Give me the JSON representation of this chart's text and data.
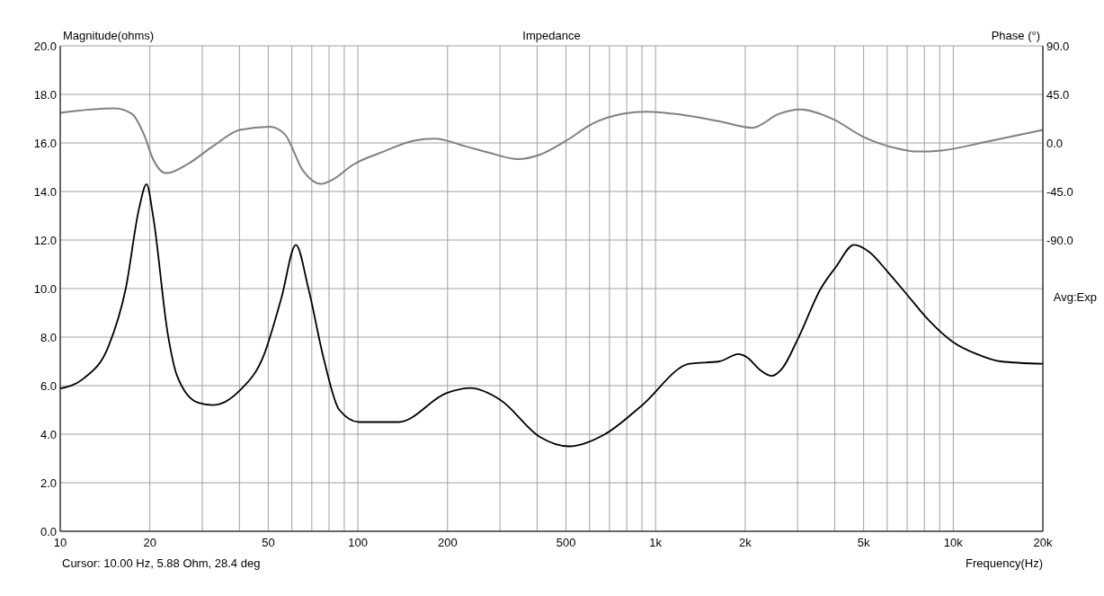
{
  "chart_data": {
    "type": "line",
    "title": "Impedance",
    "xlabel": "Frequency(Hz)",
    "ylabel": "Magnitude(ohms)",
    "y2label": "Phase (°)",
    "annotations": [
      "Cursor: 10.00 Hz, 5.88 Ohm, 28.4 deg",
      "Avg:Exp"
    ],
    "log": "x",
    "grid": true,
    "line_style": "solid",
    "marker": "none",
    "xlim": [
      10,
      20000
    ],
    "xticks": [
      {
        "value": 10,
        "label": "10"
      },
      {
        "value": 20,
        "label": "20"
      },
      {
        "value": 30,
        "label": null
      },
      {
        "value": 40,
        "label": null
      },
      {
        "value": 50,
        "label": "50"
      },
      {
        "value": 60,
        "label": null
      },
      {
        "value": 70,
        "label": null
      },
      {
        "value": 80,
        "label": null
      },
      {
        "value": 90,
        "label": null
      },
      {
        "value": 100,
        "label": "100"
      },
      {
        "value": 200,
        "label": "200"
      },
      {
        "value": 300,
        "label": null
      },
      {
        "value": 400,
        "label": null
      },
      {
        "value": 500,
        "label": "500"
      },
      {
        "value": 600,
        "label": null
      },
      {
        "value": 700,
        "label": null
      },
      {
        "value": 800,
        "label": null
      },
      {
        "value": 900,
        "label": null
      },
      {
        "value": 1000,
        "label": "1k"
      },
      {
        "value": 2000,
        "label": "2k"
      },
      {
        "value": 3000,
        "label": null
      },
      {
        "value": 4000,
        "label": null
      },
      {
        "value": 5000,
        "label": "5k"
      },
      {
        "value": 6000,
        "label": null
      },
      {
        "value": 7000,
        "label": null
      },
      {
        "value": 8000,
        "label": null
      },
      {
        "value": 9000,
        "label": null
      },
      {
        "value": 10000,
        "label": "10k"
      },
      {
        "value": 20000,
        "label": "20k"
      }
    ],
    "ylim": [
      0,
      20
    ],
    "yticks": [
      {
        "value": 0,
        "label": "0.0"
      },
      {
        "value": 2,
        "label": "2.0"
      },
      {
        "value": 4,
        "label": "4.0"
      },
      {
        "value": 6,
        "label": "6.0"
      },
      {
        "value": 8,
        "label": "8.0"
      },
      {
        "value": 10,
        "label": "10.0"
      },
      {
        "value": 12,
        "label": "12.0"
      },
      {
        "value": 14,
        "label": "14.0"
      },
      {
        "value": 16,
        "label": "16.0"
      },
      {
        "value": 18,
        "label": "18.0"
      },
      {
        "value": 20,
        "label": "20.0"
      }
    ],
    "y2lim": [
      -360,
      90
    ],
    "y2ticks": [
      {
        "value": 90,
        "label": "90.0"
      },
      {
        "value": 45,
        "label": "45.0"
      },
      {
        "value": 0,
        "label": "0.0"
      },
      {
        "value": -45,
        "label": "-45.0"
      },
      {
        "value": -90,
        "label": "-90.0"
      }
    ],
    "series": [
      {
        "color": "#000000",
        "x": [
          10,
          12,
          14.5,
          16.6,
          18.4,
          19.5,
          20.5,
          23,
          24.7,
          29,
          32.6,
          40.1,
          48.1,
          55.3,
          61.9,
          68.2,
          76.8,
          86.6,
          101,
          137,
          199,
          238,
          302,
          407,
          512,
          676,
          893,
          1300,
          1640,
          1900,
          2010,
          2270,
          2450,
          2660,
          3000,
          3590,
          4040,
          4640,
          5230,
          6010,
          7050,
          8270,
          9980,
          12000,
          14400,
          20000
        ],
        "values": [
          5.88,
          6.3,
          7.6,
          10.0,
          13.3,
          14.3,
          13.0,
          8.1,
          6.4,
          5.3,
          5.2,
          5.8,
          7.2,
          9.6,
          11.8,
          10.0,
          7.1,
          5.0,
          4.5,
          4.5,
          5.7,
          5.9,
          5.4,
          3.9,
          3.5,
          4.0,
          5.15,
          6.9,
          7.0,
          7.3,
          7.2,
          6.6,
          6.4,
          6.7,
          7.9,
          10.0,
          10.9,
          11.8,
          11.5,
          10.7,
          9.7,
          8.7,
          7.8,
          7.3,
          7.0,
          6.9
        ]
      },
      {
        "color": "#808080",
        "axis": "y2",
        "x": [
          10,
          15.2,
          17.4,
          19.1,
          20.5,
          22.7,
          27,
          32.6,
          40.1,
          50.6,
          56.8,
          65.5,
          75,
          82.2,
          96.6,
          122,
          154,
          181,
          229,
          275,
          346,
          407,
          500,
          616,
          778,
          936,
          1150,
          1640,
          2110,
          2600,
          3050,
          3950,
          4960,
          6450,
          7570,
          9120,
          12900,
          20000
        ],
        "values": [
          28,
          32,
          27,
          8,
          -15,
          -28,
          -19,
          -3,
          12,
          15,
          8,
          -26,
          -38,
          -34,
          -20,
          -8,
          2,
          4,
          -3,
          -9,
          -15,
          -11,
          2,
          18,
          27,
          29,
          27,
          20,
          14,
          27,
          31,
          22,
          6,
          -5,
          -8,
          -7,
          1,
          12
        ]
      }
    ]
  }
}
